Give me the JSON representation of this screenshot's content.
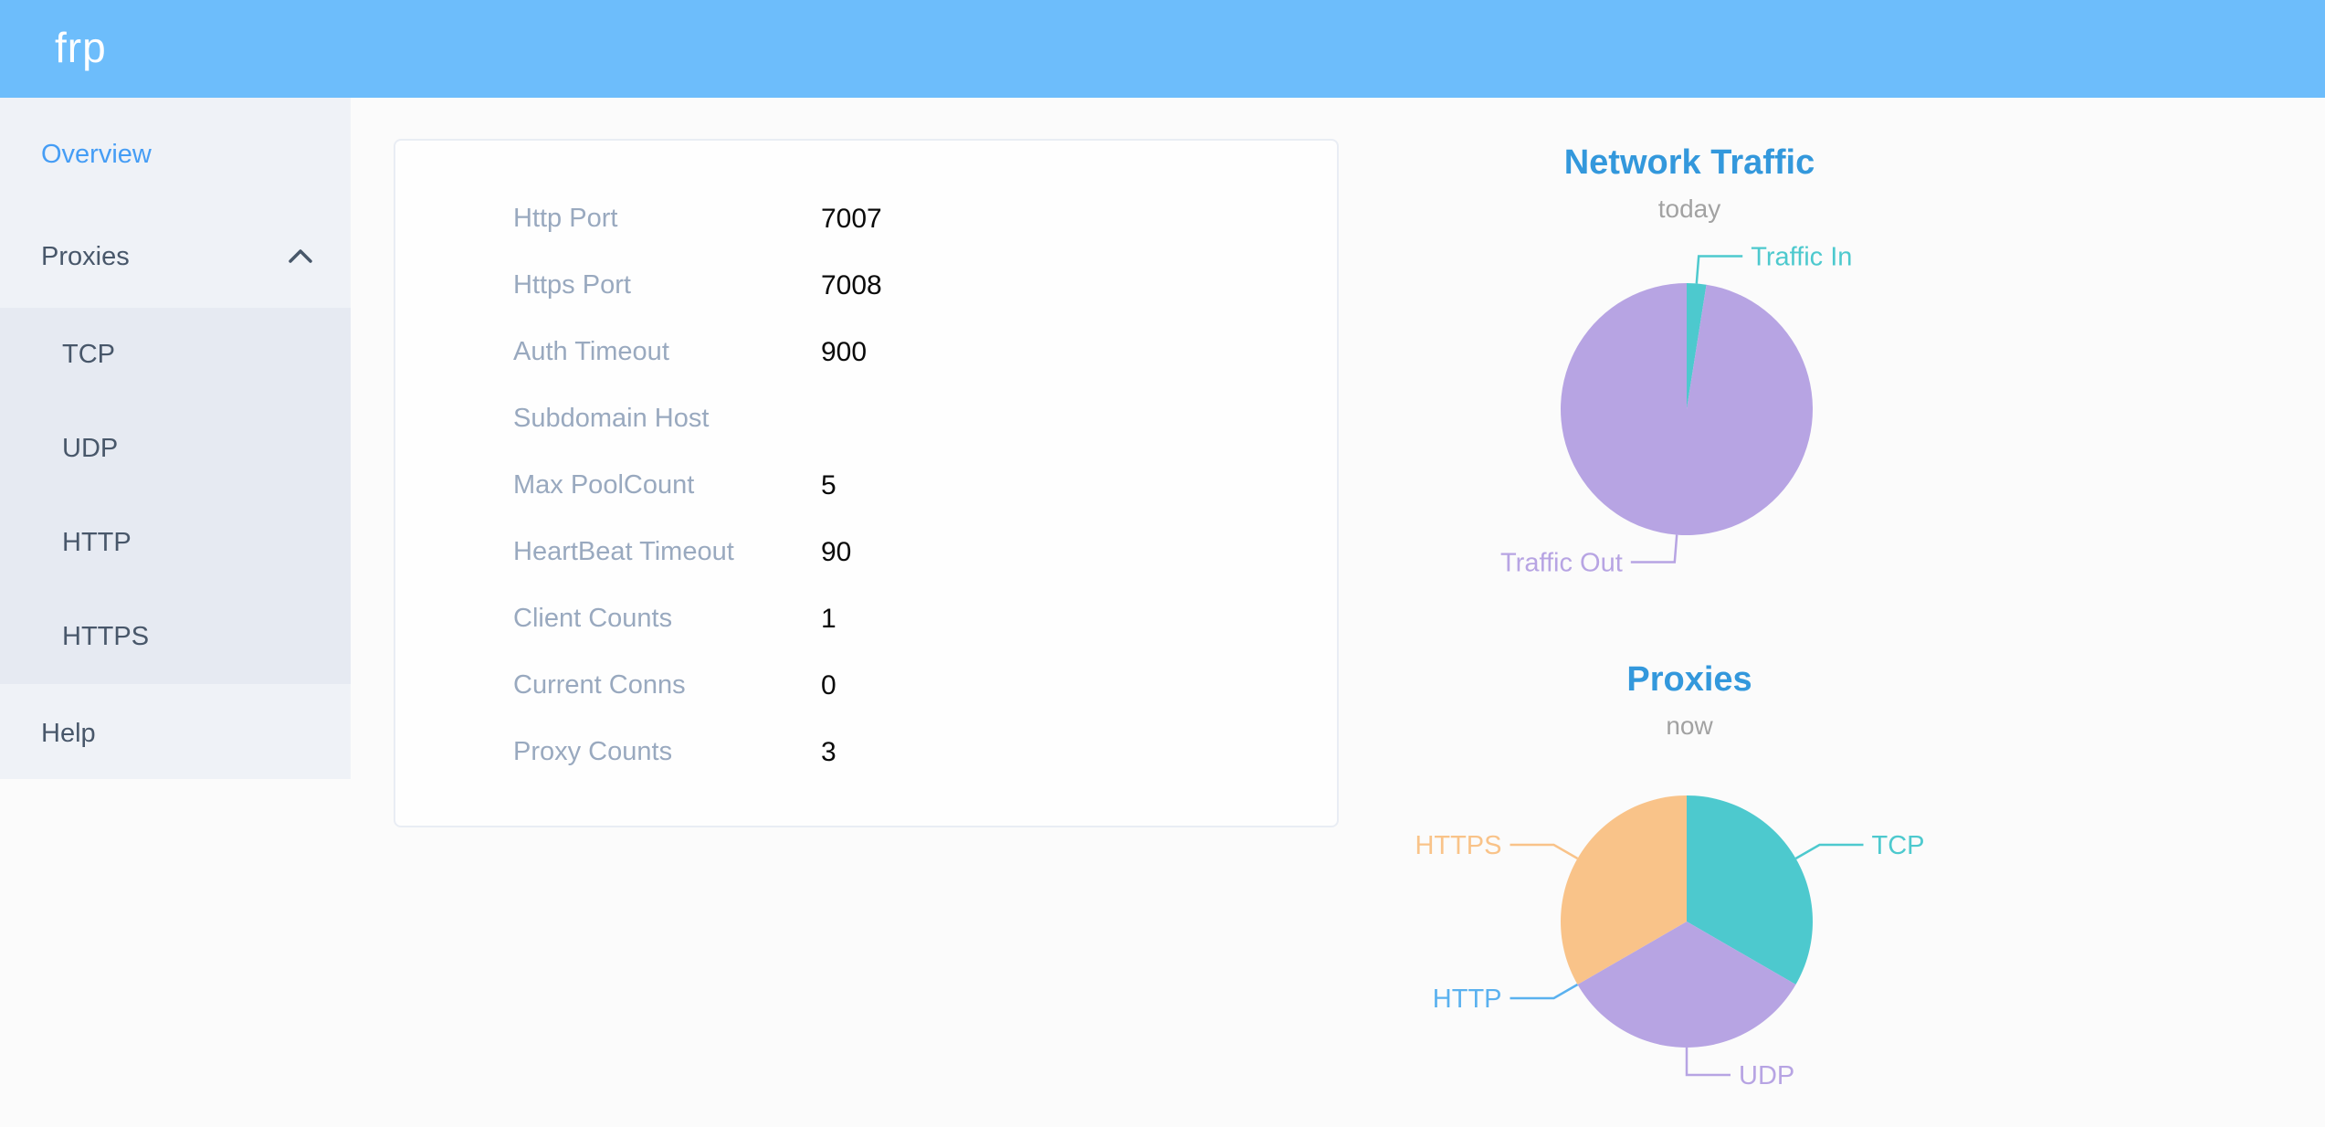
{
  "header": {
    "logo": "frp"
  },
  "sidebar": {
    "overview_label": "Overview",
    "proxies_label": "Proxies",
    "proxies_expanded": true,
    "submenu": [
      "TCP",
      "UDP",
      "HTTP",
      "HTTPS"
    ],
    "help_label": "Help",
    "active_item": "Overview"
  },
  "server_info": {
    "rows": [
      {
        "label": "Http Port",
        "value": "7007"
      },
      {
        "label": "Https Port",
        "value": "7008"
      },
      {
        "label": "Auth Timeout",
        "value": "900"
      },
      {
        "label": "Subdomain Host",
        "value": ""
      },
      {
        "label": "Max PoolCount",
        "value": "5"
      },
      {
        "label": "HeartBeat Timeout",
        "value": "90"
      },
      {
        "label": "Client Counts",
        "value": "1"
      },
      {
        "label": "Current Conns",
        "value": "0"
      },
      {
        "label": "Proxy Counts",
        "value": "3"
      }
    ]
  },
  "chart_data": [
    {
      "type": "pie",
      "title": "Network Traffic",
      "subtitle": "today",
      "legend_position": "none",
      "labels": "outside-with-leader-lines",
      "series": [
        {
          "name": "Traffic In",
          "value": 2.5,
          "color": "#4dc9ce"
        },
        {
          "name": "Traffic Out",
          "value": 97.5,
          "color": "#b7a4e3"
        }
      ]
    },
    {
      "type": "pie",
      "title": "Proxies",
      "subtitle": "now",
      "legend_position": "none",
      "labels": "outside-with-leader-lines",
      "series": [
        {
          "name": "TCP",
          "value": 1,
          "color": "#4dc9ce"
        },
        {
          "name": "UDP",
          "value": 1,
          "color": "#b7a4e3"
        },
        {
          "name": "HTTP",
          "value": 0,
          "color": "#5ab1ef"
        },
        {
          "name": "HTTPS",
          "value": 1,
          "color": "#f9c389"
        }
      ]
    }
  ],
  "colors": {
    "page_bg": "#fbfbfb",
    "header_bg": "#6dbdfb",
    "sidebar_bg": "#eff2f7",
    "submenu_bg": "#e6eaf2",
    "menu_text": "#48576a",
    "menu_active": "#459df5",
    "card_border": "#e9edf4",
    "label_text": "#99a9bf",
    "value_text": "#0a0a0a",
    "chart_title": "#3398dc",
    "chart_subtitle": "#a2a2a2"
  }
}
